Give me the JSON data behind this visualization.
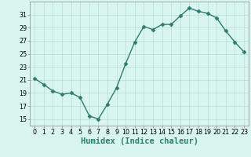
{
  "x": [
    0,
    1,
    2,
    3,
    4,
    5,
    6,
    7,
    8,
    9,
    10,
    11,
    12,
    13,
    14,
    15,
    16,
    17,
    18,
    19,
    20,
    21,
    22,
    23
  ],
  "y": [
    21.2,
    20.3,
    19.3,
    18.8,
    19.0,
    18.3,
    15.5,
    15.0,
    17.3,
    19.8,
    23.5,
    26.8,
    29.2,
    28.7,
    29.5,
    29.5,
    30.8,
    32.0,
    31.5,
    31.2,
    30.5,
    28.5,
    26.8,
    25.3
  ],
  "line_color": "#2e7d6e",
  "marker": "D",
  "marker_size": 2.5,
  "bg_color": "#d8f5f0",
  "grid_color": "#b8dcd5",
  "xlabel": "Humidex (Indice chaleur)",
  "ylim": [
    14,
    33
  ],
  "xlim": [
    -0.5,
    23.5
  ],
  "yticks": [
    15,
    17,
    19,
    21,
    23,
    25,
    27,
    29,
    31
  ],
  "xticks": [
    0,
    1,
    2,
    3,
    4,
    5,
    6,
    7,
    8,
    9,
    10,
    11,
    12,
    13,
    14,
    15,
    16,
    17,
    18,
    19,
    20,
    21,
    22,
    23
  ],
  "tick_label_size": 5.8,
  "xlabel_size": 7.5,
  "line_width": 1.0
}
